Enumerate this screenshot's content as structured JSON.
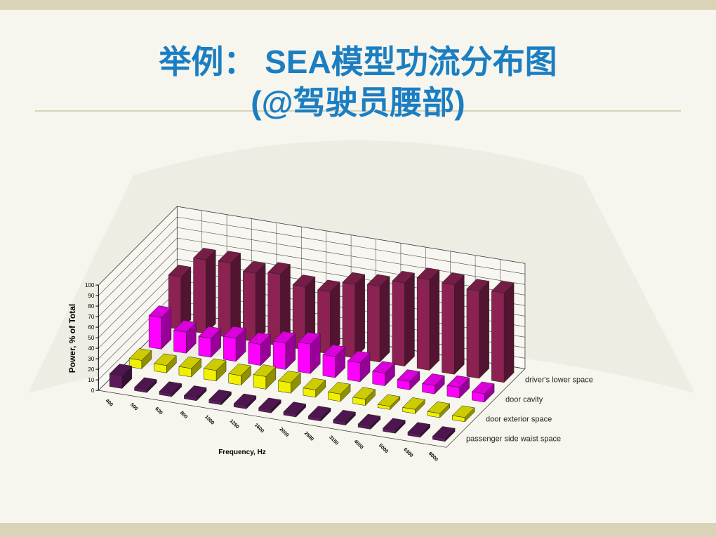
{
  "header": {
    "title_line1": "举例： SEA模型功流分布图",
    "title_line2": "(@驾驶员腰部)"
  },
  "chart_data": {
    "type": "bar3d",
    "y_label": "Power, % of Total",
    "x_label": "Frequency, Hz",
    "categories": [
      "400",
      "500",
      "630",
      "800",
      "1000",
      "1250",
      "1600",
      "2000",
      "2500",
      "3150",
      "4000",
      "5000",
      "6300",
      "8000"
    ],
    "series": [
      {
        "name": "passenger side waist space",
        "color": "#5c1a5c",
        "values": [
          12,
          3,
          3,
          3,
          3,
          3,
          3,
          3,
          3,
          3,
          3,
          3,
          3,
          3
        ]
      },
      {
        "name": "door exterior space",
        "color": "#f0f000",
        "values": [
          8,
          7,
          8,
          10,
          9,
          12,
          10,
          7,
          7,
          6,
          3,
          4,
          4,
          4
        ]
      },
      {
        "name": "door cavity",
        "color": "#ff00ff",
        "values": [
          30,
          20,
          18,
          22,
          20,
          25,
          28,
          20,
          18,
          12,
          8,
          8,
          10,
          8
        ]
      },
      {
        "name": "driver's lower space",
        "color": "#8b2252",
        "values": [
          50,
          70,
          71,
          65,
          68,
          60,
          59,
          70,
          72,
          79,
          86,
          85,
          83,
          85
        ]
      }
    ],
    "ylim": [
      0,
      100
    ],
    "yticks": [
      0,
      10,
      20,
      30,
      40,
      50,
      60,
      70,
      80,
      90,
      100
    ],
    "grid": true
  }
}
